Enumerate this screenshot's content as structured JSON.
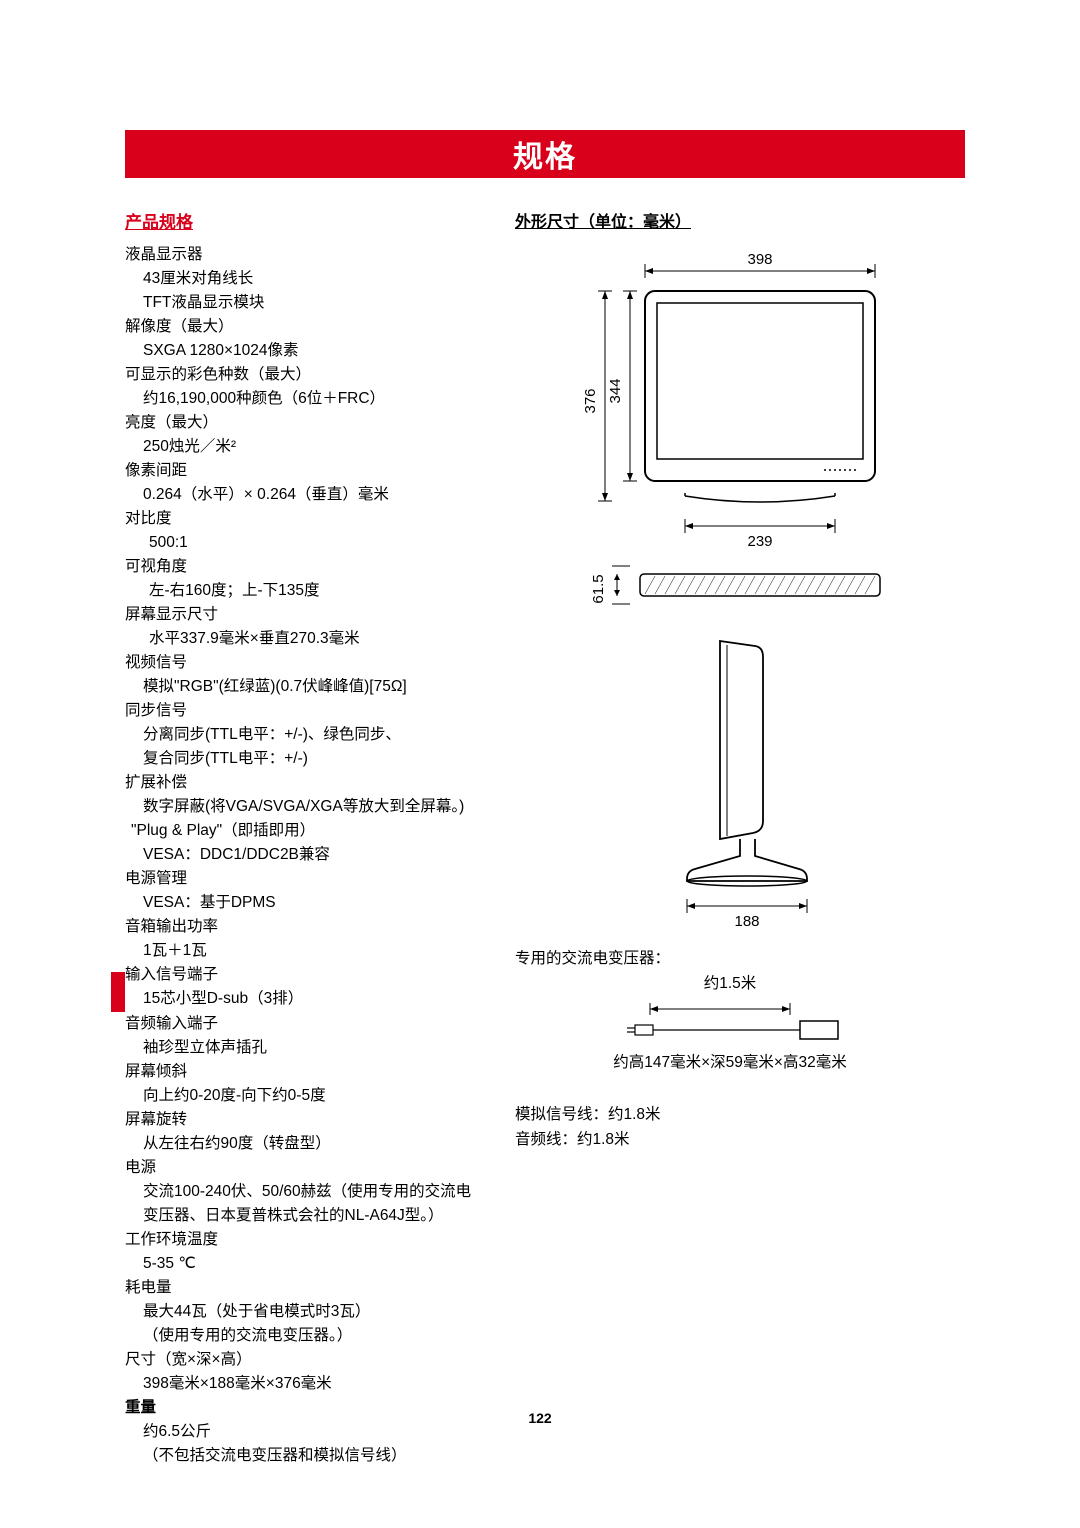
{
  "title": "规格",
  "page_number": "122",
  "left": {
    "heading": "产品规格",
    "items": [
      {
        "label": "液晶显示器",
        "values": [
          "43厘米对角线长",
          "TFT液晶显示模块"
        ]
      },
      {
        "label": "解像度（最大）",
        "values": [
          "SXGA 1280×1024像素"
        ]
      },
      {
        "label": "可显示的彩色种数（最大）",
        "values": [
          "约16,190,000种颜色（6位＋FRC）"
        ]
      },
      {
        "label": "亮度（最大）",
        "values": [
          "250烛光／米²"
        ]
      },
      {
        "label": "像素间距",
        "values": [
          "0.264（水平）× 0.264（垂直）毫米"
        ]
      },
      {
        "label": "对比度",
        "values": [
          "500:1"
        ],
        "indent": true
      },
      {
        "label": "可视角度",
        "values": [
          "左-右160度；上-下135度"
        ],
        "indent": true
      },
      {
        "label": "屏幕显示尺寸",
        "values": [
          "水平337.9毫米×垂直270.3毫米"
        ],
        "indent": true
      },
      {
        "label": "视频信号",
        "values": [
          "模拟\"RGB\"(红绿蓝)(0.7伏峰峰值)[75Ω]"
        ]
      },
      {
        "label": "同步信号",
        "values": [
          "分离同步(TTL电平：+/-)、绿色同步、",
          "复合同步(TTL电平：+/-)"
        ]
      },
      {
        "label": "扩展补偿",
        "values": [
          "数字屏蔽(将VGA/SVGA/XGA等放大到全屏幕。)"
        ]
      },
      {
        "label": "\"Plug & Play\"（即插即用）",
        "values": [
          "VESA：DDC1/DDC2B兼容"
        ],
        "labelIndent": true
      },
      {
        "label": "电源管理",
        "values": [
          "VESA：基于DPMS"
        ]
      },
      {
        "label": "音箱输出功率",
        "values": [
          "1瓦＋1瓦"
        ]
      },
      {
        "label": "输入信号端子",
        "values": [
          "15芯小型D-sub（3排）"
        ]
      },
      {
        "label": "音频输入端子",
        "values": [
          "袖珍型立体声插孔"
        ]
      },
      {
        "label": "屏幕倾斜",
        "values": [
          "向上约0-20度-向下约0-5度"
        ]
      },
      {
        "label": "屏幕旋转",
        "values": [
          "从左往右约90度（转盘型）"
        ]
      },
      {
        "label": "电源",
        "values": [
          "交流100-240伏、50/60赫兹（使用专用的交流电",
          "变压器、日本夏普株式会社的NL-A64J型。）"
        ]
      },
      {
        "label": "工作环境温度",
        "values": [
          "5-35 ℃"
        ]
      },
      {
        "label": "耗电量",
        "values": [
          "最大44瓦（处于省电模式时3瓦）",
          "（使用专用的交流电变压器。）"
        ]
      },
      {
        "label": "尺寸（宽×深×高）",
        "values": [
          "398毫米×188毫米×376毫米"
        ]
      },
      {
        "label": "重量",
        "values": [
          "约6.5公斤",
          "（不包括交流电变压器和模拟信号线）"
        ],
        "bold": true
      }
    ]
  },
  "right": {
    "heading": "外形尺寸（单位：毫米）",
    "dims": {
      "top_width": "398",
      "monitor_height_outer": "376",
      "monitor_height_inner": "344",
      "monitor_base_width": "239",
      "side_height": "61.5",
      "base_depth": "188"
    },
    "adapter": {
      "label": "专用的交流电变压器：",
      "length": "约1.5米",
      "dim": "约高147毫米×深59毫米×高32毫米"
    },
    "sig": {
      "analog": "模拟信号线：约1.8米",
      "audio": "音频线：约1.8米"
    }
  }
}
